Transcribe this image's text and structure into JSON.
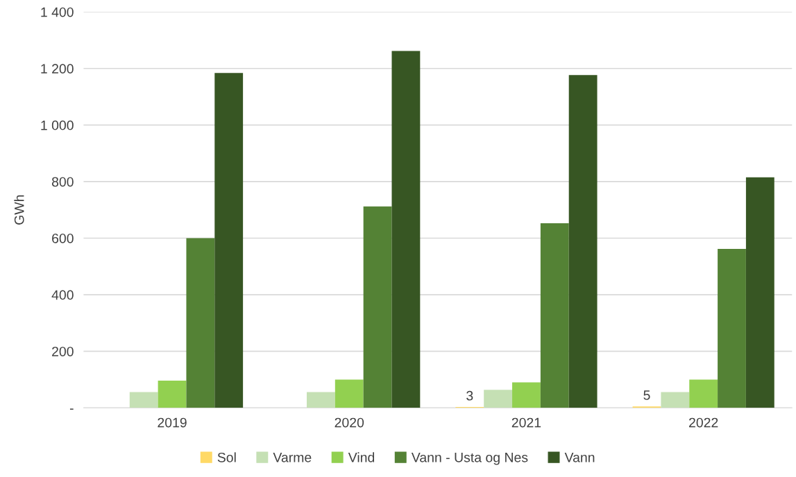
{
  "chart_data": {
    "type": "bar",
    "ylabel": "GWh",
    "categories": [
      "2019",
      "2020",
      "2021",
      "2022"
    ],
    "series": [
      {
        "name": "Sol",
        "color": "#ffd966",
        "values": [
          0,
          0,
          3,
          5
        ],
        "value_labels": [
          null,
          null,
          "3",
          "5"
        ]
      },
      {
        "name": "Varme",
        "color": "#c5e0b4",
        "values": [
          56,
          56,
          64,
          56
        ]
      },
      {
        "name": "Vind",
        "color": "#92d050",
        "values": [
          96,
          100,
          90,
          100
        ]
      },
      {
        "name": "Vann - Usta og Nes",
        "color": "#548235",
        "values": [
          600,
          712,
          653,
          562
        ]
      },
      {
        "name": "Vann",
        "color": "#375623",
        "values": [
          1184,
          1262,
          1177,
          815
        ]
      }
    ],
    "ylim": [
      0,
      1400
    ],
    "yticks": [
      {
        "value": 0,
        "label": "-"
      },
      {
        "value": 200,
        "label": "200"
      },
      {
        "value": 400,
        "label": "400"
      },
      {
        "value": 600,
        "label": "600"
      },
      {
        "value": 800,
        "label": "800"
      },
      {
        "value": 1000,
        "label": "1 000"
      },
      {
        "value": 1200,
        "label": "1 200"
      },
      {
        "value": 1400,
        "label": "1 400"
      }
    ],
    "grid": "y",
    "legend": "bottom"
  }
}
